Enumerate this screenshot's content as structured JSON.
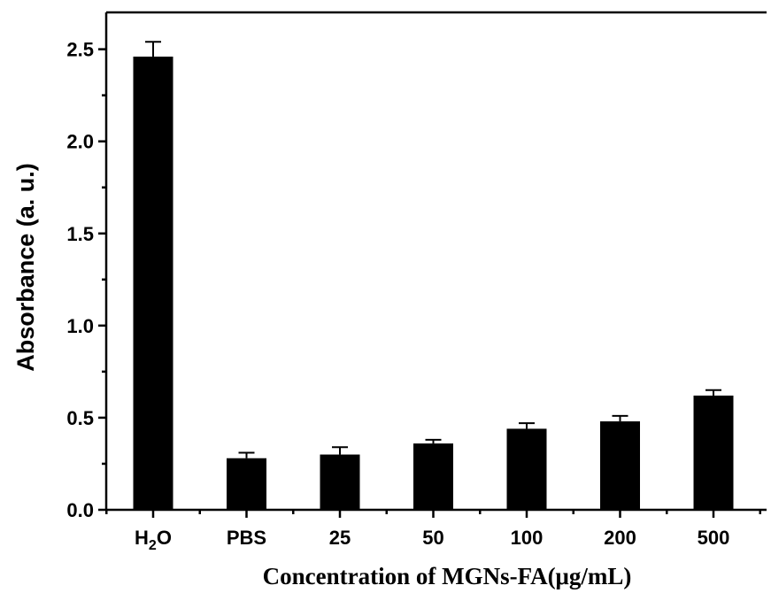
{
  "chart_data": {
    "type": "bar",
    "title": "",
    "xlabel": "Concentration of MGNs-FA(μg/mL)",
    "ylabel": "Absorbance (a. u.)",
    "ylim": [
      0,
      2.7
    ],
    "yticks": [
      "0.0",
      "0.5",
      "1.0",
      "1.5",
      "2.0",
      "2.5"
    ],
    "categories": [
      "H2O",
      "PBS",
      "25",
      "50",
      "100",
      "200",
      "500"
    ],
    "values": [
      2.46,
      0.28,
      0.3,
      0.36,
      0.44,
      0.48,
      0.62
    ],
    "errors": [
      0.08,
      0.03,
      0.04,
      0.02,
      0.03,
      0.03,
      0.03
    ],
    "bar_color": "#000000",
    "grid": false,
    "legend": "none"
  }
}
